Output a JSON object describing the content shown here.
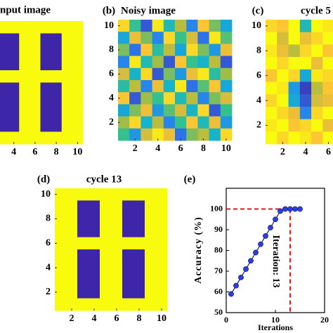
{
  "chart_data": [
    {
      "type": "heatmap",
      "title": "nput image",
      "x": [
        3,
        4,
        5,
        6,
        7,
        8,
        9,
        10
      ],
      "y": [
        10,
        9,
        8,
        7,
        6,
        5,
        4,
        3,
        2,
        1
      ],
      "z": [
        [
          1,
          1,
          1,
          1,
          1,
          1,
          1,
          1
        ],
        [
          0,
          0,
          1,
          1,
          0,
          0,
          1,
          1
        ],
        [
          0,
          0,
          1,
          1,
          0,
          0,
          1,
          1
        ],
        [
          0,
          0,
          1,
          1,
          0,
          0,
          1,
          1
        ],
        [
          1,
          1,
          1,
          1,
          1,
          1,
          1,
          1
        ],
        [
          0,
          0,
          1,
          1,
          0,
          0,
          1,
          1
        ],
        [
          0,
          0,
          1,
          1,
          0,
          0,
          1,
          1
        ],
        [
          0,
          0,
          1,
          1,
          0,
          0,
          1,
          1
        ],
        [
          0,
          0,
          1,
          1,
          0,
          0,
          1,
          1
        ],
        [
          1,
          1,
          1,
          1,
          1,
          1,
          1,
          1
        ]
      ],
      "xlim": [
        2.7,
        10.5
      ],
      "ylim": [
        0.5,
        10.5
      ],
      "xticks": [
        4,
        6,
        8,
        10
      ],
      "clim": [
        0,
        1
      ],
      "colormap": [
        "#3e26a8",
        "#2c7bf1",
        "#13b2d1",
        "#35c08f",
        "#abbd3f",
        "#fcbf37",
        "#f9fb0e"
      ]
    },
    {
      "type": "heatmap",
      "label": "(b)",
      "title": "Noisy image",
      "x": [
        1,
        2,
        3,
        4,
        5,
        6,
        7,
        8,
        9,
        10
      ],
      "y": [
        10,
        9,
        8,
        7,
        6,
        5,
        4,
        3,
        2,
        1
      ],
      "z": [
        [
          0.9,
          0.5,
          0.1,
          0.95,
          0.4,
          0.7,
          0.2,
          0.85,
          0.6,
          0.3
        ],
        [
          0.3,
          0.8,
          0.6,
          0.2,
          0.9,
          0.5,
          0.75,
          0.15,
          0.95,
          0.55
        ],
        [
          0.6,
          0.15,
          0.85,
          0.45,
          0.7,
          0.3,
          0.9,
          0.6,
          0.25,
          0.8
        ],
        [
          0.2,
          0.95,
          0.4,
          0.65,
          0.1,
          0.85,
          0.5,
          0.35,
          0.7,
          0.1
        ],
        [
          0.75,
          0.35,
          0.9,
          0.1,
          0.6,
          0.25,
          0.8,
          0.95,
          0.45,
          0.65
        ],
        [
          0.45,
          0.7,
          0.2,
          0.8,
          0.35,
          0.95,
          0.15,
          0.55,
          0.85,
          0.3
        ],
        [
          0.85,
          0.1,
          0.65,
          0.5,
          0.9,
          0.4,
          0.7,
          0.2,
          0.6,
          0.75
        ],
        [
          0.3,
          0.6,
          0.8,
          0.25,
          0.55,
          0.75,
          0.35,
          0.9,
          0.1,
          0.5
        ],
        [
          0.65,
          0.9,
          0.35,
          0.7,
          0.2,
          0.5,
          0.85,
          0.4,
          0.8,
          0.25
        ],
        [
          0.5,
          0.25,
          0.75,
          0.95,
          0.8,
          0.15,
          0.6,
          0.7,
          0.35,
          0.9
        ]
      ],
      "xlim": [
        0.5,
        10.5
      ],
      "ylim": [
        0.5,
        10.5
      ],
      "xticks": [
        2,
        4,
        6,
        8,
        10
      ],
      "yticks": [
        2,
        4,
        6,
        8,
        10
      ],
      "clim": [
        0,
        1
      ],
      "colormap": [
        "#3e26a8",
        "#2c7bf1",
        "#13b2d1",
        "#35c08f",
        "#abbd3f",
        "#fcbf37",
        "#f9fb0e"
      ]
    },
    {
      "type": "heatmap",
      "label": "(c)",
      "title": "cycle 5",
      "x": [
        1,
        2,
        3,
        4,
        5,
        6
      ],
      "y": [
        10,
        9,
        8,
        7,
        6,
        5,
        4,
        3,
        2,
        1
      ],
      "z": [
        [
          0.9,
          0.85,
          1,
          0.4,
          1,
          0.95
        ],
        [
          1,
          0.75,
          1,
          0.8,
          0.9,
          1
        ],
        [
          0.95,
          0.8,
          0.7,
          0.9,
          1,
          0.85
        ],
        [
          1,
          0.9,
          1,
          1,
          0.8,
          1
        ],
        [
          0.85,
          1,
          0.9,
          0.3,
          0.95,
          0.9
        ],
        [
          1,
          0.95,
          0.25,
          0.05,
          0.7,
          0.85
        ],
        [
          0.9,
          1,
          0.3,
          0.1,
          0.75,
          0.8
        ],
        [
          1,
          0.9,
          0.8,
          0.2,
          0.9,
          1
        ],
        [
          0.95,
          1,
          0.85,
          0.9,
          1,
          0.8
        ],
        [
          1,
          0.9,
          1,
          0.95,
          0.85,
          1
        ]
      ],
      "xlim": [
        0.5,
        6.4
      ],
      "ylim": [
        0.5,
        10.5
      ],
      "xticks": [
        2,
        4,
        6
      ],
      "yticks": [
        2,
        4,
        6,
        8,
        10
      ],
      "clim": [
        0,
        1
      ],
      "colormap": [
        "#3e26a8",
        "#2c7bf1",
        "#13b2d1",
        "#35c08f",
        "#abbd3f",
        "#fcbf37",
        "#f9fb0e"
      ]
    },
    {
      "type": "heatmap",
      "label": "(d)",
      "title": "cycle 13",
      "x": [
        1,
        2,
        3,
        4,
        5,
        6,
        7,
        8,
        9,
        10
      ],
      "y": [
        10,
        9,
        8,
        7,
        6,
        5,
        4,
        3,
        2,
        1
      ],
      "z": [
        [
          1,
          1,
          1,
          1,
          1,
          1,
          1,
          1,
          1,
          1
        ],
        [
          1,
          1,
          0,
          0,
          1,
          1,
          0,
          0,
          1,
          1
        ],
        [
          1,
          1,
          0,
          0,
          1,
          1,
          0,
          0,
          1,
          1
        ],
        [
          1,
          1,
          0,
          0,
          1,
          1,
          0,
          0,
          1,
          1
        ],
        [
          1,
          1,
          1,
          1,
          1,
          1,
          1,
          1,
          1,
          1
        ],
        [
          1,
          1,
          0,
          0,
          1,
          1,
          0,
          0,
          1,
          1
        ],
        [
          1,
          1,
          0,
          0,
          1,
          1,
          0,
          0,
          1,
          1
        ],
        [
          1,
          1,
          0,
          0,
          1,
          1,
          0,
          0,
          1,
          1
        ],
        [
          1,
          1,
          0,
          0,
          1,
          1,
          0,
          0,
          1,
          1
        ],
        [
          1,
          1,
          1,
          1,
          1,
          1,
          1,
          1,
          1,
          1
        ]
      ],
      "xlim": [
        0.5,
        10.5
      ],
      "ylim": [
        0.5,
        10.5
      ],
      "xticks": [
        2,
        4,
        6,
        8,
        10
      ],
      "yticks": [
        2,
        4,
        6,
        8,
        10
      ],
      "clim": [
        0,
        1
      ],
      "colormap": [
        "#3e26a8",
        "#2c7bf1",
        "#13b2d1",
        "#35c08f",
        "#abbd3f",
        "#fcbf37",
        "#f9fb0e"
      ]
    },
    {
      "type": "line",
      "label": "(e)",
      "x_label": "Iterations",
      "y_label": "Accuracy (%)",
      "annotation": "Iteration: 13",
      "x": [
        1,
        2,
        3,
        4,
        5,
        6,
        7,
        8,
        9,
        10,
        11,
        12,
        13,
        14,
        15
      ],
      "series": [
        {
          "color": "#2b3fe0",
          "line_color": "#1c1c5a",
          "values": [
            59,
            63,
            67,
            71,
            75,
            79,
            83,
            87,
            91,
            95,
            99,
            100,
            100,
            100,
            100
          ]
        }
      ],
      "reference": {
        "x": 13,
        "y": 100,
        "color": "#e01818"
      },
      "xlim": [
        0,
        20
      ],
      "ylim": [
        50,
        110
      ],
      "xticks": [
        0,
        10,
        20
      ],
      "yticks": [
        50,
        60,
        70,
        80,
        90,
        100
      ]
    }
  ]
}
